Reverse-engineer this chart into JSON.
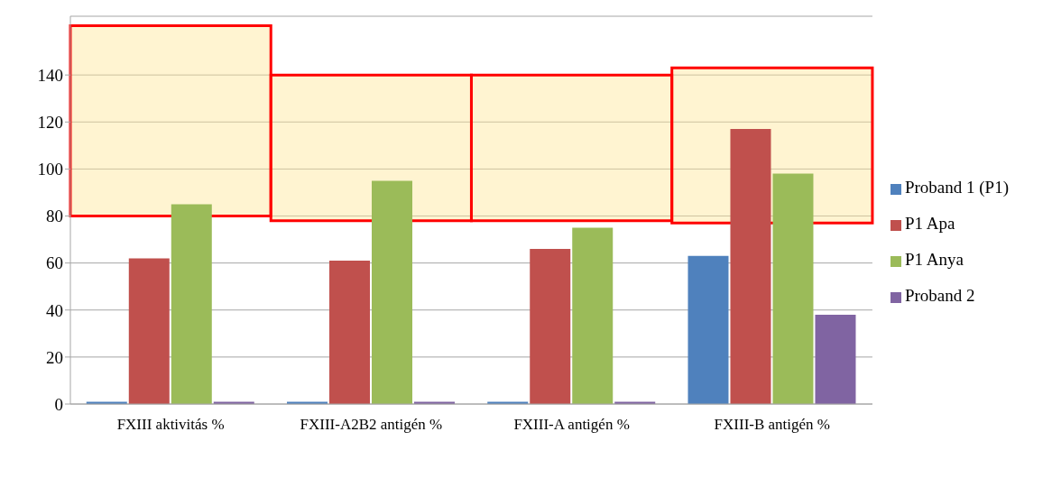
{
  "chart_data": {
    "type": "bar",
    "categories": [
      "FXIII aktivitás %",
      "FXIII-A2B2 antigén %",
      "FXIII-A antigén %",
      "FXIII-B antigén %"
    ],
    "series": [
      {
        "name": "Proband 1 (P1)",
        "color": "#4f81bd",
        "values": [
          1,
          1,
          1,
          63
        ]
      },
      {
        "name": "P1 Apa",
        "color": "#c0504d",
        "values": [
          62,
          61,
          66,
          117
        ]
      },
      {
        "name": "P1 Anya",
        "color": "#9bbb59",
        "values": [
          85,
          95,
          75,
          98
        ]
      },
      {
        "name": "Proband 2",
        "color": "#8064a2",
        "values": [
          1,
          1,
          1,
          38
        ]
      },
      {
        "type": "bar",
        "color": "#ff0000",
        "base": [
          80,
          78,
          78,
          77
        ],
        "values": [
          81,
          62,
          62,
          66
        ]
      }
    ],
    "ylim": [
      0,
      165
    ],
    "yticks": [
      0,
      20,
      40,
      60,
      80,
      100,
      120,
      140
    ],
    "grid": "y",
    "legend": "right"
  }
}
